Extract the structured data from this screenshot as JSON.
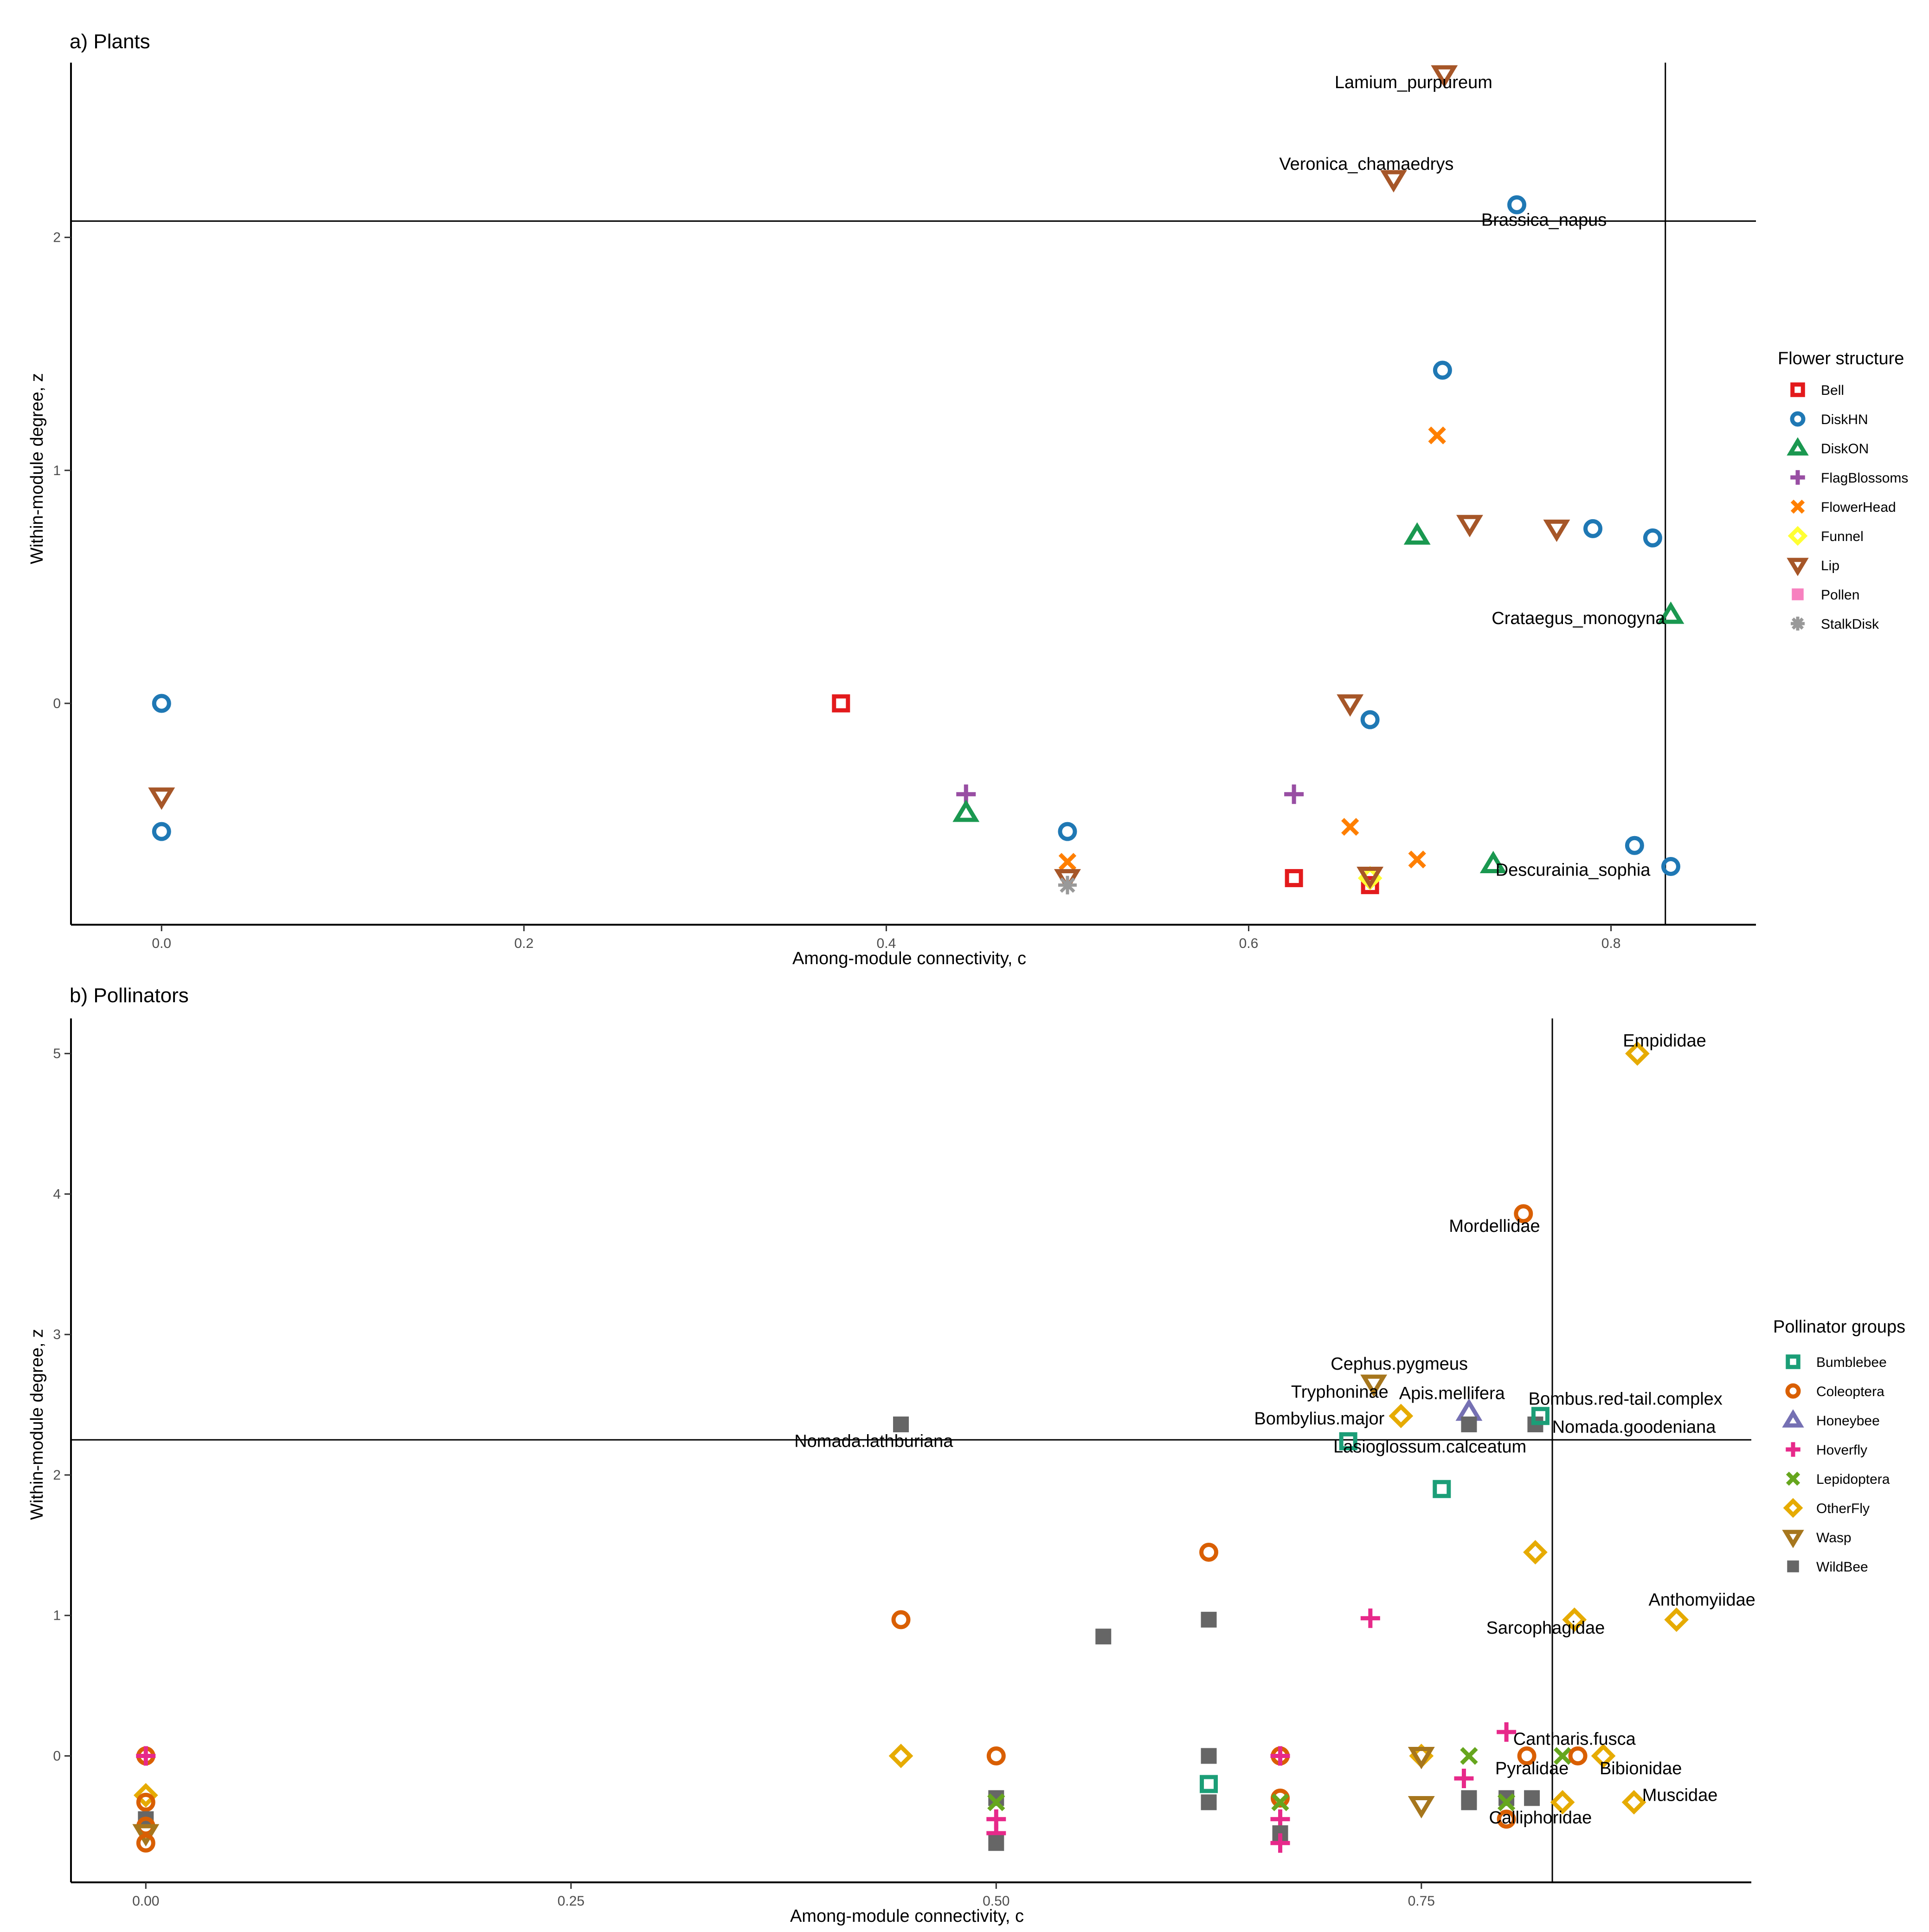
{
  "chart_data": [
    {
      "type": "scatter",
      "title": "a) Plants",
      "xlabel": "Among-module connectivity, c",
      "ylabel": "Within-module degree, z",
      "xlim": [
        -0.05,
        0.88
      ],
      "ylim": [
        -0.95,
        2.75
      ],
      "xticks": [
        0,
        0.2,
        0.4,
        0.6,
        0.8
      ],
      "xtick_labels": [
        "0.0",
        "0.2",
        "0.4",
        "0.6",
        "0.8"
      ],
      "yticks": [
        0,
        1,
        2
      ],
      "ytick_labels": [
        "0",
        "1",
        "2"
      ],
      "threshold_x": 0.83,
      "threshold_y": 2.07,
      "legend": {
        "title": "Flower structure",
        "entries": [
          "Bell",
          "DiskHN",
          "DiskON",
          "FlagBlossoms",
          "FlowerHead",
          "Funnel",
          "Lip",
          "Pollen",
          "StalkDisk"
        ],
        "position": "right"
      },
      "style": {
        "Bell": {
          "color": "#e31a1c",
          "shape": "square-open"
        },
        "DiskHN": {
          "color": "#1f78b4",
          "shape": "circle-open"
        },
        "DiskON": {
          "color": "#1a9850",
          "shape": "triangle-open"
        },
        "FlagBlossoms": {
          "color": "#984ea3",
          "shape": "plus"
        },
        "FlowerHead": {
          "color": "#ff7f00",
          "shape": "cross"
        },
        "Funnel": {
          "color": "#ffff33",
          "shape": "diamond-open"
        },
        "Lip": {
          "color": "#a65628",
          "shape": "triangle-down-open"
        },
        "Pollen": {
          "color": "#f781bf",
          "shape": "square-filled"
        },
        "StalkDisk": {
          "color": "#999999",
          "shape": "asterisk"
        }
      },
      "points": [
        {
          "group": "DiskHN",
          "x": 0.0,
          "y": 0.0
        },
        {
          "group": "DiskHN",
          "x": 0.0,
          "y": -0.55
        },
        {
          "group": "Lip",
          "x": 0.0,
          "y": -0.4
        },
        {
          "group": "Bell",
          "x": 0.375,
          "y": 0.0
        },
        {
          "group": "FlagBlossoms",
          "x": 0.444,
          "y": -0.39
        },
        {
          "group": "DiskON",
          "x": 0.444,
          "y": -0.47
        },
        {
          "group": "DiskHN",
          "x": 0.5,
          "y": -0.55
        },
        {
          "group": "FlowerHead",
          "x": 0.5,
          "y": -0.68
        },
        {
          "group": "Lip",
          "x": 0.5,
          "y": -0.75
        },
        {
          "group": "StalkDisk",
          "x": 0.5,
          "y": -0.78
        },
        {
          "group": "FlagBlossoms",
          "x": 0.625,
          "y": -0.39
        },
        {
          "group": "Bell",
          "x": 0.625,
          "y": -0.75
        },
        {
          "group": "FlowerHead",
          "x": 0.656,
          "y": -0.53
        },
        {
          "group": "Lip",
          "x": 0.656,
          "y": 0.0
        },
        {
          "group": "DiskHN",
          "x": 0.667,
          "y": -0.07
        },
        {
          "group": "Bell",
          "x": 0.667,
          "y": -0.78
        },
        {
          "group": "Funnel",
          "x": 0.667,
          "y": -0.75
        },
        {
          "group": "Lip",
          "x": 0.667,
          "y": -0.74
        },
        {
          "group": "Lip",
          "x": 0.68,
          "y": 2.25
        },
        {
          "group": "DiskON",
          "x": 0.693,
          "y": 0.72
        },
        {
          "group": "FlowerHead",
          "x": 0.693,
          "y": -0.67
        },
        {
          "group": "FlowerHead",
          "x": 0.704,
          "y": 1.15
        },
        {
          "group": "DiskHN",
          "x": 0.707,
          "y": 1.43
        },
        {
          "group": "Lip",
          "x": 0.708,
          "y": 2.7
        },
        {
          "group": "Lip",
          "x": 0.722,
          "y": 0.77
        },
        {
          "group": "DiskON",
          "x": 0.735,
          "y": -0.69
        },
        {
          "group": "DiskHN",
          "x": 0.748,
          "y": 2.14
        },
        {
          "group": "Lip",
          "x": 0.77,
          "y": 0.75
        },
        {
          "group": "DiskHN",
          "x": 0.79,
          "y": 0.75
        },
        {
          "group": "DiskHN",
          "x": 0.813,
          "y": -0.61
        },
        {
          "group": "DiskHN",
          "x": 0.823,
          "y": 0.71
        },
        {
          "group": "DiskON",
          "x": 0.833,
          "y": 0.38
        },
        {
          "group": "DiskHN",
          "x": 0.833,
          "y": -0.7
        }
      ],
      "labels": [
        {
          "text": "Lamium_purpureum",
          "x": 0.691,
          "y": 2.64
        },
        {
          "text": "Veronica_chamaedrys",
          "x": 0.665,
          "y": 2.29
        },
        {
          "text": "Brassica_napus",
          "x": 0.763,
          "y": 2.05
        },
        {
          "text": "Crataegus_monogyna",
          "x": 0.782,
          "y": 0.34
        },
        {
          "text": "Descurainia_sophia",
          "x": 0.779,
          "y": -0.74
        }
      ]
    },
    {
      "type": "scatter",
      "title": "b) Pollinators",
      "xlabel": "Among-module connectivity, c",
      "ylabel": "Within-module degree, z",
      "xlim": [
        -0.044,
        0.944
      ],
      "ylim": [
        -0.9,
        5.25
      ],
      "xticks": [
        0,
        0.25,
        0.5,
        0.75
      ],
      "xtick_labels": [
        "0.00",
        "0.25",
        "0.50",
        "0.75"
      ],
      "yticks": [
        0,
        1,
        2,
        3,
        4,
        5
      ],
      "ytick_labels": [
        "0",
        "1",
        "2",
        "3",
        "4",
        "5"
      ],
      "threshold_x": 0.827,
      "threshold_y": 2.25,
      "legend": {
        "title": "Pollinator groups",
        "entries": [
          "Bumblebee",
          "Coleoptera",
          "Honeybee",
          "Hoverfly",
          "Lepidoptera",
          "OtherFly",
          "Wasp",
          "WildBee"
        ],
        "position": "right"
      },
      "style": {
        "Bumblebee": {
          "color": "#1b9e77",
          "shape": "square-open"
        },
        "Coleoptera": {
          "color": "#d95f02",
          "shape": "circle-open"
        },
        "Honeybee": {
          "color": "#7570b3",
          "shape": "triangle-open"
        },
        "Hoverfly": {
          "color": "#e7298a",
          "shape": "plus"
        },
        "Lepidoptera": {
          "color": "#66a61e",
          "shape": "cross"
        },
        "OtherFly": {
          "color": "#e6ab02",
          "shape": "diamond-open"
        },
        "Wasp": {
          "color": "#a6761d",
          "shape": "triangle-down-open"
        },
        "WildBee": {
          "color": "#666666",
          "shape": "square-filled"
        }
      },
      "points": [
        {
          "group": "Coleoptera",
          "x": 0.0,
          "y": 0.0
        },
        {
          "group": "Hoverfly",
          "x": 0.0,
          "y": 0.0
        },
        {
          "group": "OtherFly",
          "x": 0.0,
          "y": -0.28
        },
        {
          "group": "Coleoptera",
          "x": 0.0,
          "y": -0.33
        },
        {
          "group": "WildBee",
          "x": 0.0,
          "y": -0.45
        },
        {
          "group": "Coleoptera",
          "x": 0.0,
          "y": -0.5
        },
        {
          "group": "Wasp",
          "x": 0.0,
          "y": -0.55
        },
        {
          "group": "Coleoptera",
          "x": 0.0,
          "y": -0.62
        },
        {
          "group": "Coleoptera",
          "x": 0.444,
          "y": 0.97
        },
        {
          "group": "OtherFly",
          "x": 0.444,
          "y": 0.0
        },
        {
          "group": "WildBee",
          "x": 0.444,
          "y": 2.36
        },
        {
          "group": "Coleoptera",
          "x": 0.5,
          "y": 0.0
        },
        {
          "group": "WildBee",
          "x": 0.5,
          "y": -0.3
        },
        {
          "group": "Lepidoptera",
          "x": 0.5,
          "y": -0.33
        },
        {
          "group": "Hoverfly",
          "x": 0.5,
          "y": -0.45
        },
        {
          "group": "Hoverfly",
          "x": 0.5,
          "y": -0.55
        },
        {
          "group": "WildBee",
          "x": 0.5,
          "y": -0.62
        },
        {
          "group": "WildBee",
          "x": 0.563,
          "y": 0.85
        },
        {
          "group": "WildBee",
          "x": 0.625,
          "y": 0.97
        },
        {
          "group": "Coleoptera",
          "x": 0.625,
          "y": 1.45
        },
        {
          "group": "WildBee",
          "x": 0.625,
          "y": 0.0
        },
        {
          "group": "Bumblebee",
          "x": 0.625,
          "y": -0.2
        },
        {
          "group": "WildBee",
          "x": 0.625,
          "y": -0.33
        },
        {
          "group": "Coleoptera",
          "x": 0.667,
          "y": 0.0
        },
        {
          "group": "Hoverfly",
          "x": 0.667,
          "y": 0.0
        },
        {
          "group": "Coleoptera",
          "x": 0.667,
          "y": -0.3
        },
        {
          "group": "Lepidoptera",
          "x": 0.667,
          "y": -0.33
        },
        {
          "group": "Hoverfly",
          "x": 0.667,
          "y": -0.45
        },
        {
          "group": "WildBee",
          "x": 0.667,
          "y": -0.55
        },
        {
          "group": "Hoverfly",
          "x": 0.667,
          "y": -0.62
        },
        {
          "group": "Bumblebee",
          "x": 0.707,
          "y": 2.24
        },
        {
          "group": "Hoverfly",
          "x": 0.72,
          "y": 0.98
        },
        {
          "group": "Wasp",
          "x": 0.722,
          "y": 2.65
        },
        {
          "group": "OtherFly",
          "x": 0.738,
          "y": 2.42
        },
        {
          "group": "OtherFly",
          "x": 0.75,
          "y": 0.0
        },
        {
          "group": "Wasp",
          "x": 0.75,
          "y": 0.0
        },
        {
          "group": "Wasp",
          "x": 0.75,
          "y": -0.35
        },
        {
          "group": "Bumblebee",
          "x": 0.762,
          "y": 1.9
        },
        {
          "group": "Honeybee",
          "x": 0.778,
          "y": 2.45
        },
        {
          "group": "WildBee",
          "x": 0.778,
          "y": 2.36
        },
        {
          "group": "Lepidoptera",
          "x": 0.778,
          "y": 0.0
        },
        {
          "group": "Hoverfly",
          "x": 0.775,
          "y": -0.16
        },
        {
          "group": "WildBee",
          "x": 0.778,
          "y": -0.3
        },
        {
          "group": "WildBee",
          "x": 0.778,
          "y": -0.33
        },
        {
          "group": "Hoverfly",
          "x": 0.8,
          "y": 0.17
        },
        {
          "group": "WildBee",
          "x": 0.8,
          "y": -0.3
        },
        {
          "group": "Lepidoptera",
          "x": 0.8,
          "y": -0.33
        },
        {
          "group": "Coleoptera",
          "x": 0.8,
          "y": -0.45
        },
        {
          "group": "Coleoptera",
          "x": 0.81,
          "y": 3.86
        },
        {
          "group": "Coleoptera",
          "x": 0.812,
          "y": 0.0
        },
        {
          "group": "WildBee",
          "x": 0.815,
          "y": -0.3
        },
        {
          "group": "OtherFly",
          "x": 0.817,
          "y": 1.45
        },
        {
          "group": "WildBee",
          "x": 0.817,
          "y": 2.36
        },
        {
          "group": "Bumblebee",
          "x": 0.82,
          "y": 2.42
        },
        {
          "group": "Lepidoptera",
          "x": 0.833,
          "y": 0.0
        },
        {
          "group": "OtherFly",
          "x": 0.833,
          "y": -0.33
        },
        {
          "group": "Coleoptera",
          "x": 0.842,
          "y": 0.0
        },
        {
          "group": "OtherFly",
          "x": 0.84,
          "y": 0.97
        },
        {
          "group": "OtherFly",
          "x": 0.857,
          "y": 0.0
        },
        {
          "group": "OtherFly",
          "x": 0.877,
          "y": 5.0
        },
        {
          "group": "OtherFly",
          "x": 0.875,
          "y": -0.33
        },
        {
          "group": "OtherFly",
          "x": 0.9,
          "y": 0.97
        }
      ],
      "labels": [
        {
          "text": "Empididae",
          "x": 0.893,
          "y": 5.05
        },
        {
          "text": "Mordellidae",
          "x": 0.793,
          "y": 3.73
        },
        {
          "text": "Cephus.pygmeus",
          "x": 0.737,
          "y": 2.75
        },
        {
          "text": "Tryphoninae",
          "x": 0.702,
          "y": 2.55
        },
        {
          "text": "Apis.mellifera",
          "x": 0.768,
          "y": 2.54
        },
        {
          "text": "Bombus.red-tail.complex",
          "x": 0.87,
          "y": 2.5
        },
        {
          "text": "Bombylius.major",
          "x": 0.69,
          "y": 2.36
        },
        {
          "text": "Nomada.goodeniana",
          "x": 0.875,
          "y": 2.3
        },
        {
          "text": "Nomada.lathburiana",
          "x": 0.428,
          "y": 2.2
        },
        {
          "text": "Lasioglossum.calceatum",
          "x": 0.755,
          "y": 2.16
        },
        {
          "text": "Anthomyiidae",
          "x": 0.915,
          "y": 1.07
        },
        {
          "text": "Sarcophagidae",
          "x": 0.823,
          "y": 0.87
        },
        {
          "text": "Cantharis.fusca",
          "x": 0.84,
          "y": 0.08
        },
        {
          "text": "Pyralidae",
          "x": 0.815,
          "y": -0.13
        },
        {
          "text": "Bibionidae",
          "x": 0.879,
          "y": -0.13
        },
        {
          "text": "Muscidae",
          "x": 0.902,
          "y": -0.32
        },
        {
          "text": "Calliphoridae",
          "x": 0.82,
          "y": -0.48
        }
      ]
    }
  ]
}
